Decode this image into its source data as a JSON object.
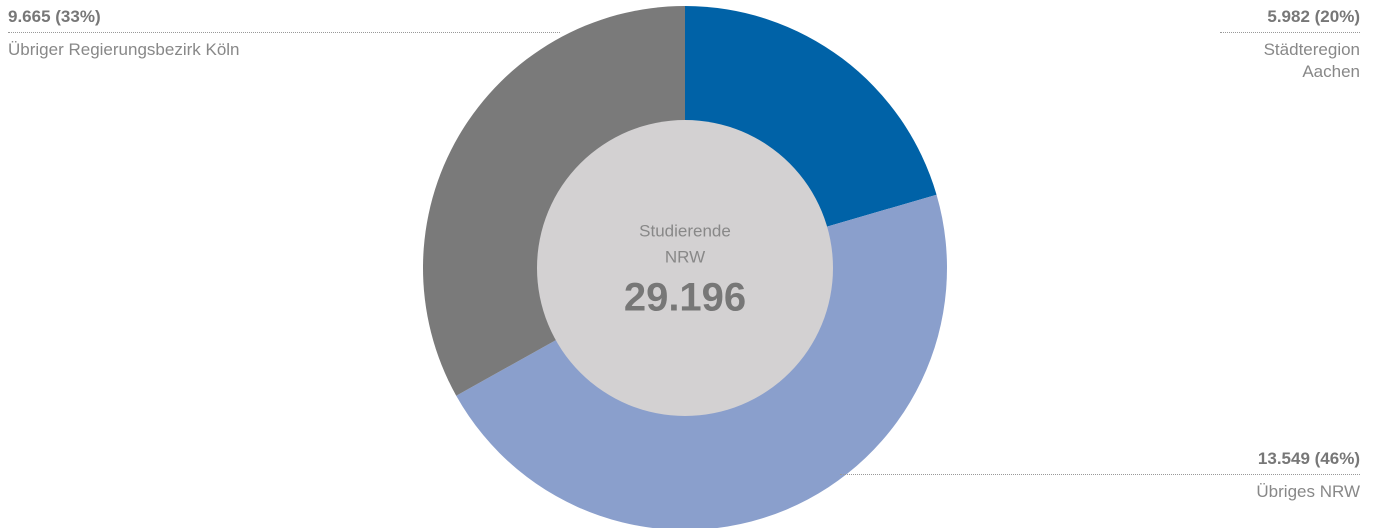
{
  "chart_data": {
    "type": "donut",
    "categories": [
      "Städteregion Aachen",
      "Übriges NRW",
      "Übriger Regierungsbezirk Köln"
    ],
    "values": [
      5982,
      13549,
      9665
    ],
    "value_labels": [
      "5.982 (20%)",
      "13.549 (46%)",
      "9.665 (33%)"
    ],
    "colors": [
      "#0062a7",
      "#8a9fcc",
      "#7a7a7a"
    ],
    "center_text": [
      "Studierende",
      "NRW"
    ],
    "total": {
      "value": 29196,
      "label": "29.196"
    }
  }
}
